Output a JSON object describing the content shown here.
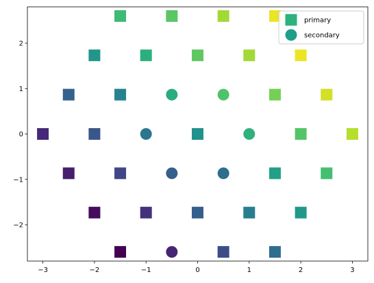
{
  "chart_data": {
    "type": "scatter",
    "title": "",
    "xlabel": "",
    "ylabel": "",
    "xlim": [
      -3.3,
      3.3
    ],
    "ylim": [
      -2.8,
      2.8
    ],
    "xticks": [
      -3,
      -2,
      -1,
      0,
      1,
      2,
      3
    ],
    "yticks": [
      -2,
      -1,
      0,
      1,
      2
    ],
    "xtick_labels": [
      "−3",
      "−2",
      "−1",
      "0",
      "1",
      "2",
      "3"
    ],
    "ytick_labels": [
      "−2",
      "−1",
      "0",
      "1",
      "2"
    ],
    "grid": false,
    "legend_position": "top-right",
    "colormap": "viridis",
    "series": [
      {
        "name": "primary",
        "marker": "square",
        "legend_color": "#2db27d",
        "points": [
          {
            "x": -1.5,
            "y": 2.598,
            "c": 0.68
          },
          {
            "x": -0.5,
            "y": 2.598,
            "c": 0.74
          },
          {
            "x": 0.5,
            "y": 2.598,
            "c": 0.86
          },
          {
            "x": 1.5,
            "y": 2.598,
            "c": 0.97
          },
          {
            "x": -2.0,
            "y": 1.732,
            "c": 0.52
          },
          {
            "x": -1.0,
            "y": 1.732,
            "c": 0.63
          },
          {
            "x": 0.0,
            "y": 1.732,
            "c": 0.75
          },
          {
            "x": 1.0,
            "y": 1.732,
            "c": 0.86
          },
          {
            "x": 2.0,
            "y": 1.732,
            "c": 0.97
          },
          {
            "x": -2.5,
            "y": 0.866,
            "c": 0.31
          },
          {
            "x": -1.5,
            "y": 0.866,
            "c": 0.44
          },
          {
            "x": 1.5,
            "y": 0.866,
            "c": 0.79
          },
          {
            "x": 2.5,
            "y": 0.866,
            "c": 0.93
          },
          {
            "x": -3.0,
            "y": 0.0,
            "c": 0.11
          },
          {
            "x": -2.0,
            "y": 0.0,
            "c": 0.27
          },
          {
            "x": 0.0,
            "y": 0.0,
            "c": 0.5
          },
          {
            "x": 2.0,
            "y": 0.0,
            "c": 0.73
          },
          {
            "x": 3.0,
            "y": 0.0,
            "c": 0.89
          },
          {
            "x": -2.5,
            "y": -0.866,
            "c": 0.08
          },
          {
            "x": -1.5,
            "y": -0.866,
            "c": 0.21
          },
          {
            "x": 1.5,
            "y": -0.866,
            "c": 0.57
          },
          {
            "x": 2.5,
            "y": -0.866,
            "c": 0.7
          },
          {
            "x": -2.0,
            "y": -1.732,
            "c": 0.03
          },
          {
            "x": -1.0,
            "y": -1.732,
            "c": 0.14
          },
          {
            "x": 0.0,
            "y": -1.732,
            "c": 0.3
          },
          {
            "x": 1.0,
            "y": -1.732,
            "c": 0.42
          },
          {
            "x": 2.0,
            "y": -1.732,
            "c": 0.53
          },
          {
            "x": -1.5,
            "y": -2.598,
            "c": 0.0
          },
          {
            "x": 0.5,
            "y": -2.598,
            "c": 0.23
          },
          {
            "x": 1.5,
            "y": -2.598,
            "c": 0.36
          }
        ]
      },
      {
        "name": "secondary",
        "marker": "circle",
        "legend_color": "#1f9e89",
        "points": [
          {
            "x": -0.5,
            "y": 0.866,
            "c": 0.62
          },
          {
            "x": 0.5,
            "y": 0.866,
            "c": 0.72
          },
          {
            "x": -1.0,
            "y": 0.0,
            "c": 0.39
          },
          {
            "x": 1.0,
            "y": 0.0,
            "c": 0.64
          },
          {
            "x": -0.5,
            "y": -0.866,
            "c": 0.3
          },
          {
            "x": 0.5,
            "y": -0.866,
            "c": 0.36
          },
          {
            "x": -0.5,
            "y": -2.598,
            "c": 0.1
          }
        ]
      }
    ]
  }
}
